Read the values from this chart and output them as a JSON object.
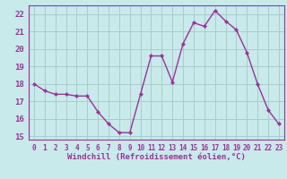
{
  "x": [
    0,
    1,
    2,
    3,
    4,
    5,
    6,
    7,
    8,
    9,
    10,
    11,
    12,
    13,
    14,
    15,
    16,
    17,
    18,
    19,
    20,
    21,
    22,
    23
  ],
  "y": [
    18.0,
    17.6,
    17.4,
    17.4,
    17.3,
    17.3,
    16.4,
    15.7,
    15.2,
    15.2,
    17.4,
    19.6,
    19.6,
    18.1,
    20.3,
    21.5,
    21.3,
    22.2,
    21.6,
    21.1,
    19.8,
    18.0,
    16.5,
    15.7
  ],
  "line_color": "#993399",
  "marker": "D",
  "marker_size": 2.2,
  "bg_color": "#c8eaea",
  "grid_color": "#aacccc",
  "xlabel": "Windchill (Refroidissement éolien,°C)",
  "xlabel_color": "#993399",
  "tick_color": "#993399",
  "spine_color": "#993399",
  "ylim": [
    14.8,
    22.5
  ],
  "xlim": [
    -0.5,
    23.5
  ],
  "yticks": [
    15,
    16,
    17,
    18,
    19,
    20,
    21,
    22
  ],
  "xticks": [
    0,
    1,
    2,
    3,
    4,
    5,
    6,
    7,
    8,
    9,
    10,
    11,
    12,
    13,
    14,
    15,
    16,
    17,
    18,
    19,
    20,
    21,
    22,
    23
  ],
  "line_width": 1.0,
  "xlabel_fontsize": 6.5,
  "tick_fontsize": 5.5,
  "ytick_fontsize": 6.5
}
